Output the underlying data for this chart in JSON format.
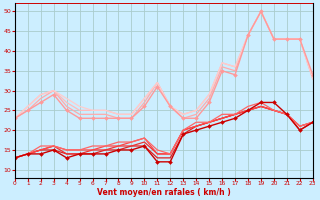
{
  "xlabel": "Vent moyen/en rafales ( km/h )",
  "xlim": [
    0,
    23
  ],
  "ylim": [
    8,
    52
  ],
  "yticks": [
    10,
    15,
    20,
    25,
    30,
    35,
    40,
    45,
    50
  ],
  "xticks": [
    0,
    1,
    2,
    3,
    4,
    5,
    6,
    7,
    8,
    9,
    10,
    11,
    12,
    13,
    14,
    15,
    16,
    17,
    18,
    19,
    20,
    21,
    22,
    23
  ],
  "background_color": "#cceeff",
  "grid_color": "#aacccc",
  "series": [
    {
      "x": [
        0,
        1,
        2,
        3,
        4,
        5,
        6,
        7,
        8,
        9,
        10,
        11,
        12,
        13,
        14,
        15,
        16,
        17,
        18,
        19,
        20,
        21,
        22,
        23
      ],
      "y": [
        13,
        14,
        14,
        15,
        13,
        14,
        14,
        14,
        15,
        15,
        16,
        12,
        12,
        19,
        20,
        21,
        22,
        23,
        25,
        27,
        27,
        24,
        20,
        22
      ],
      "color": "#cc0000",
      "linewidth": 1.0,
      "marker": "D",
      "markersize": 2.0,
      "zorder": 6
    },
    {
      "x": [
        0,
        1,
        2,
        3,
        4,
        5,
        6,
        7,
        8,
        9,
        10,
        11,
        12,
        13,
        14,
        15,
        16,
        17,
        18,
        19,
        20,
        21,
        22,
        23
      ],
      "y": [
        13,
        14,
        15,
        15,
        14,
        14,
        14,
        15,
        15,
        16,
        16,
        13,
        13,
        19,
        21,
        22,
        23,
        24,
        25,
        26,
        25,
        24,
        20,
        22
      ],
      "color": "#dd2222",
      "linewidth": 0.9,
      "marker": null,
      "markersize": 0,
      "zorder": 5
    },
    {
      "x": [
        0,
        1,
        2,
        3,
        4,
        5,
        6,
        7,
        8,
        9,
        10,
        11,
        12,
        13,
        14,
        15,
        16,
        17,
        18,
        19,
        20,
        21,
        22,
        23
      ],
      "y": [
        13,
        14,
        15,
        16,
        14,
        14,
        15,
        15,
        16,
        16,
        17,
        14,
        14,
        20,
        21,
        22,
        23,
        24,
        25,
        26,
        25,
        24,
        21,
        22
      ],
      "color": "#ee3333",
      "linewidth": 0.9,
      "marker": null,
      "markersize": 0,
      "zorder": 5
    },
    {
      "x": [
        0,
        1,
        2,
        3,
        4,
        5,
        6,
        7,
        8,
        9,
        10,
        11,
        12,
        13,
        14,
        15,
        16,
        17,
        18,
        19,
        20,
        21,
        22,
        23
      ],
      "y": [
        13,
        14,
        15,
        16,
        15,
        15,
        15,
        16,
        16,
        17,
        18,
        14,
        14,
        20,
        21,
        22,
        23,
        24,
        25,
        26,
        25,
        24,
        21,
        22
      ],
      "color": "#ff4444",
      "linewidth": 0.9,
      "marker": null,
      "markersize": 0,
      "zorder": 5
    },
    {
      "x": [
        0,
        1,
        2,
        3,
        4,
        5,
        6,
        7,
        8,
        9,
        10,
        11,
        12,
        13,
        14,
        15,
        16,
        17,
        18,
        19,
        20,
        21,
        22,
        23
      ],
      "y": [
        13,
        14,
        16,
        16,
        15,
        15,
        16,
        16,
        17,
        17,
        18,
        15,
        14,
        20,
        22,
        22,
        24,
        24,
        26,
        27,
        25,
        24,
        21,
        22
      ],
      "color": "#ff6666",
      "linewidth": 0.9,
      "marker": null,
      "markersize": 0,
      "zorder": 5
    },
    {
      "x": [
        0,
        1,
        2,
        3,
        4,
        5,
        6,
        7,
        8,
        9,
        10,
        11,
        12,
        13,
        14,
        15,
        16,
        17,
        18,
        19,
        20,
        21,
        22,
        23
      ],
      "y": [
        23,
        25,
        27,
        29,
        25,
        23,
        23,
        23,
        23,
        23,
        26,
        31,
        26,
        23,
        23,
        27,
        35,
        34,
        44,
        50,
        43,
        43,
        43,
        34
      ],
      "color": "#ff9999",
      "linewidth": 1.0,
      "marker": "D",
      "markersize": 2.0,
      "zorder": 4
    },
    {
      "x": [
        0,
        1,
        2,
        3,
        4,
        5,
        6,
        7,
        8,
        9,
        10,
        11,
        12,
        13,
        14,
        15,
        16,
        17,
        18,
        19,
        20,
        21,
        22,
        23
      ],
      "y": [
        23,
        25,
        28,
        30,
        26,
        24,
        24,
        24,
        23,
        23,
        27,
        32,
        26,
        23,
        24,
        28,
        36,
        35,
        44,
        50,
        43,
        43,
        43,
        33
      ],
      "color": "#ffaaaa",
      "linewidth": 0.9,
      "marker": null,
      "markersize": 0,
      "zorder": 3
    },
    {
      "x": [
        0,
        1,
        2,
        3,
        4,
        5,
        6,
        7,
        8,
        9,
        10,
        11,
        12,
        13,
        14,
        15,
        16,
        17,
        18,
        19,
        20,
        21,
        22,
        23
      ],
      "y": [
        23,
        26,
        29,
        30,
        27,
        25,
        25,
        25,
        24,
        24,
        28,
        32,
        26,
        24,
        25,
        29,
        37,
        36,
        44,
        50,
        43,
        43,
        43,
        33
      ],
      "color": "#ffbbbb",
      "linewidth": 0.9,
      "marker": null,
      "markersize": 0,
      "zorder": 3
    },
    {
      "x": [
        0,
        1,
        2,
        3,
        4,
        5,
        6,
        7,
        8,
        9,
        10,
        11,
        12,
        13,
        14,
        15,
        16,
        17,
        18,
        19,
        20,
        21,
        22,
        23
      ],
      "y": [
        23,
        26,
        29,
        30,
        28,
        26,
        25,
        25,
        24,
        24,
        28,
        32,
        26,
        24,
        25,
        29,
        37,
        36,
        44,
        50,
        43,
        43,
        43,
        33
      ],
      "color": "#ffcccc",
      "linewidth": 0.9,
      "marker": null,
      "markersize": 0,
      "zorder": 3
    }
  ]
}
